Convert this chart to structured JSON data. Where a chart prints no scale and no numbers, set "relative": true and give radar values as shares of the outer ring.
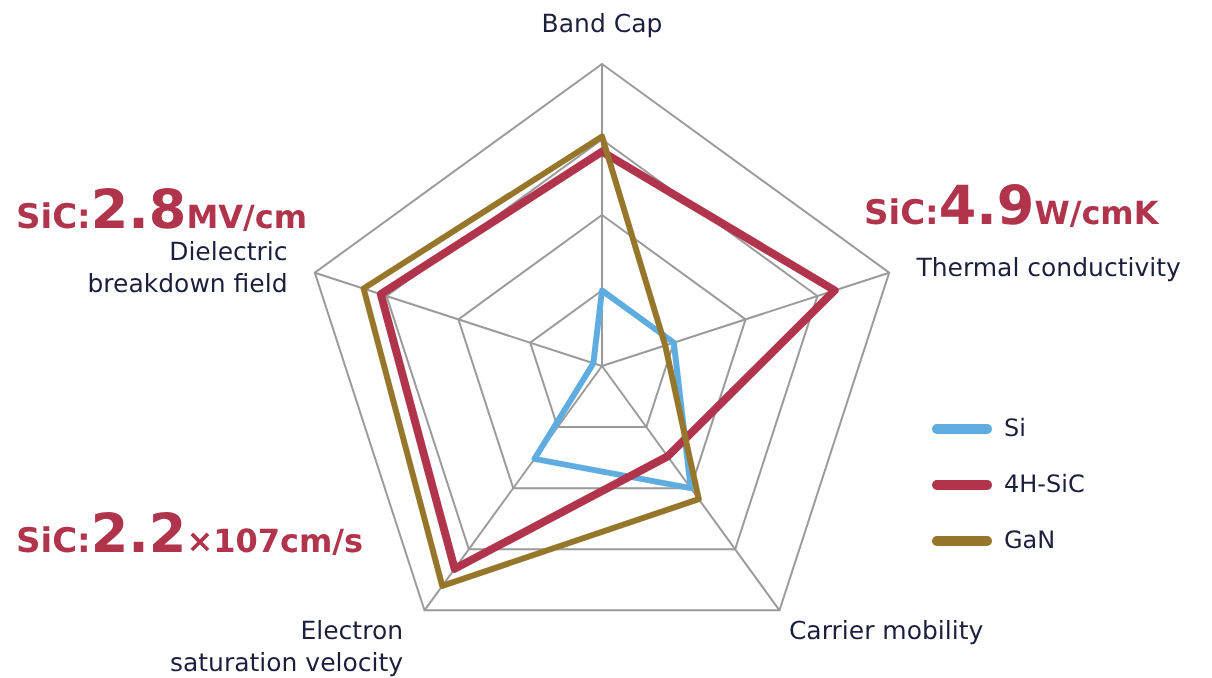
{
  "chart_data": {
    "type": "radar",
    "relative": true,
    "grid": true,
    "legend": "right",
    "categories": [
      "Band Cap",
      "Thermal conductivity",
      "Carrier mobility",
      "Electron\nsaturation velocity",
      "Dielectric\nbreakdown field"
    ],
    "series": [
      {
        "name": "Si",
        "color": "#5fade0",
        "values": [
          0.25,
          0.25,
          0.5,
          0.38,
          0.03
        ]
      },
      {
        "name": "4H-SiC",
        "color": "#b0344b",
        "values": [
          0.71,
          0.81,
          0.37,
          0.83,
          0.77
        ]
      },
      {
        "name": "GaN",
        "color": "#96762a",
        "values": [
          0.76,
          0.22,
          0.545,
          0.9,
          0.83
        ]
      }
    ],
    "annotations": [
      "SiC:2.8MV/cm",
      "SiC:4.9W/cmK",
      "SiC:2.2×107cm/s"
    ]
  }
}
